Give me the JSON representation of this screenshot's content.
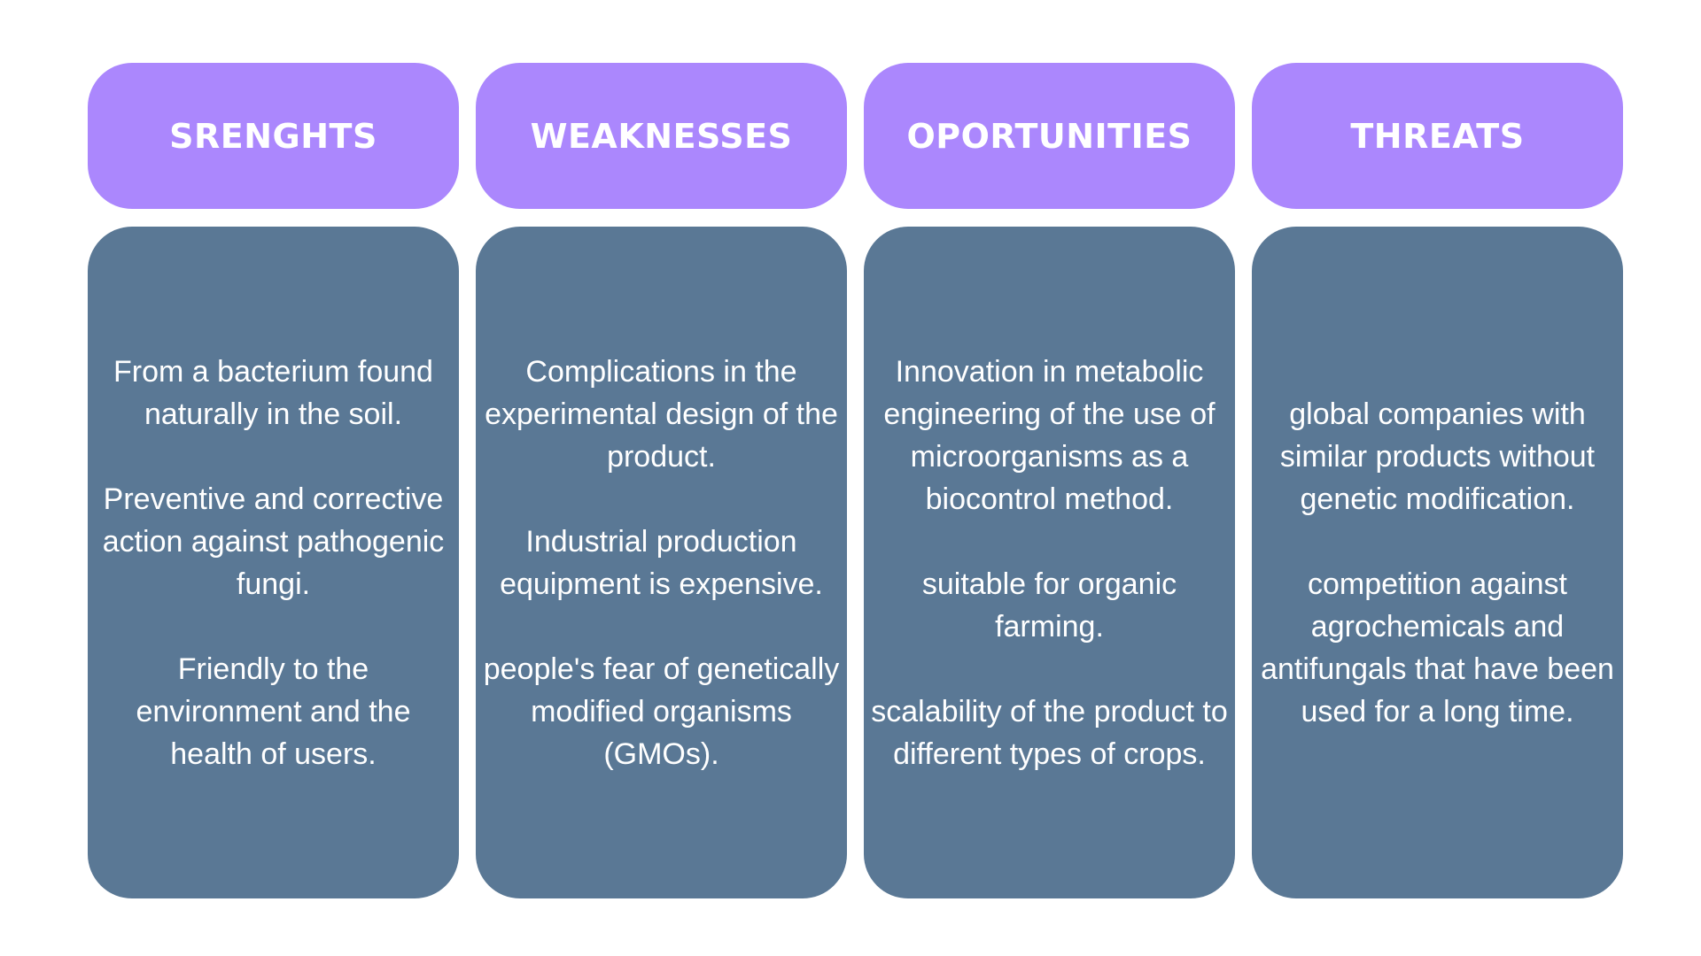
{
  "colors": {
    "header_bg": "#ab87fd",
    "body_bg": "#5a7895",
    "text": "#ffffff",
    "page_bg": "#ffffff"
  },
  "columns": [
    {
      "heading": "SRENGHTS",
      "paragraphs": [
        "From a bacterium found naturally in the soil.",
        "Preventive and corrective action against pathogenic fungi.",
        "Friendly to the environment and the health of users."
      ]
    },
    {
      "heading": "WEAKNESSES",
      "paragraphs": [
        "Complications in the experimental design of the product.",
        "Industrial production equipment is expensive.",
        "people's fear of genetically modified organisms (GMOs)."
      ]
    },
    {
      "heading": "OPORTUNITIES",
      "paragraphs": [
        "Innovation in metabolic engineering of the use of microorganisms as a biocontrol method.",
        "suitable for organic farming.",
        "scalability of the product to different types of crops."
      ]
    },
    {
      "heading": "THREATS",
      "paragraphs": [
        "global companies with similar products without genetic modification.",
        "competition against agrochemicals and antifungals that have been used for a long time."
      ]
    }
  ]
}
